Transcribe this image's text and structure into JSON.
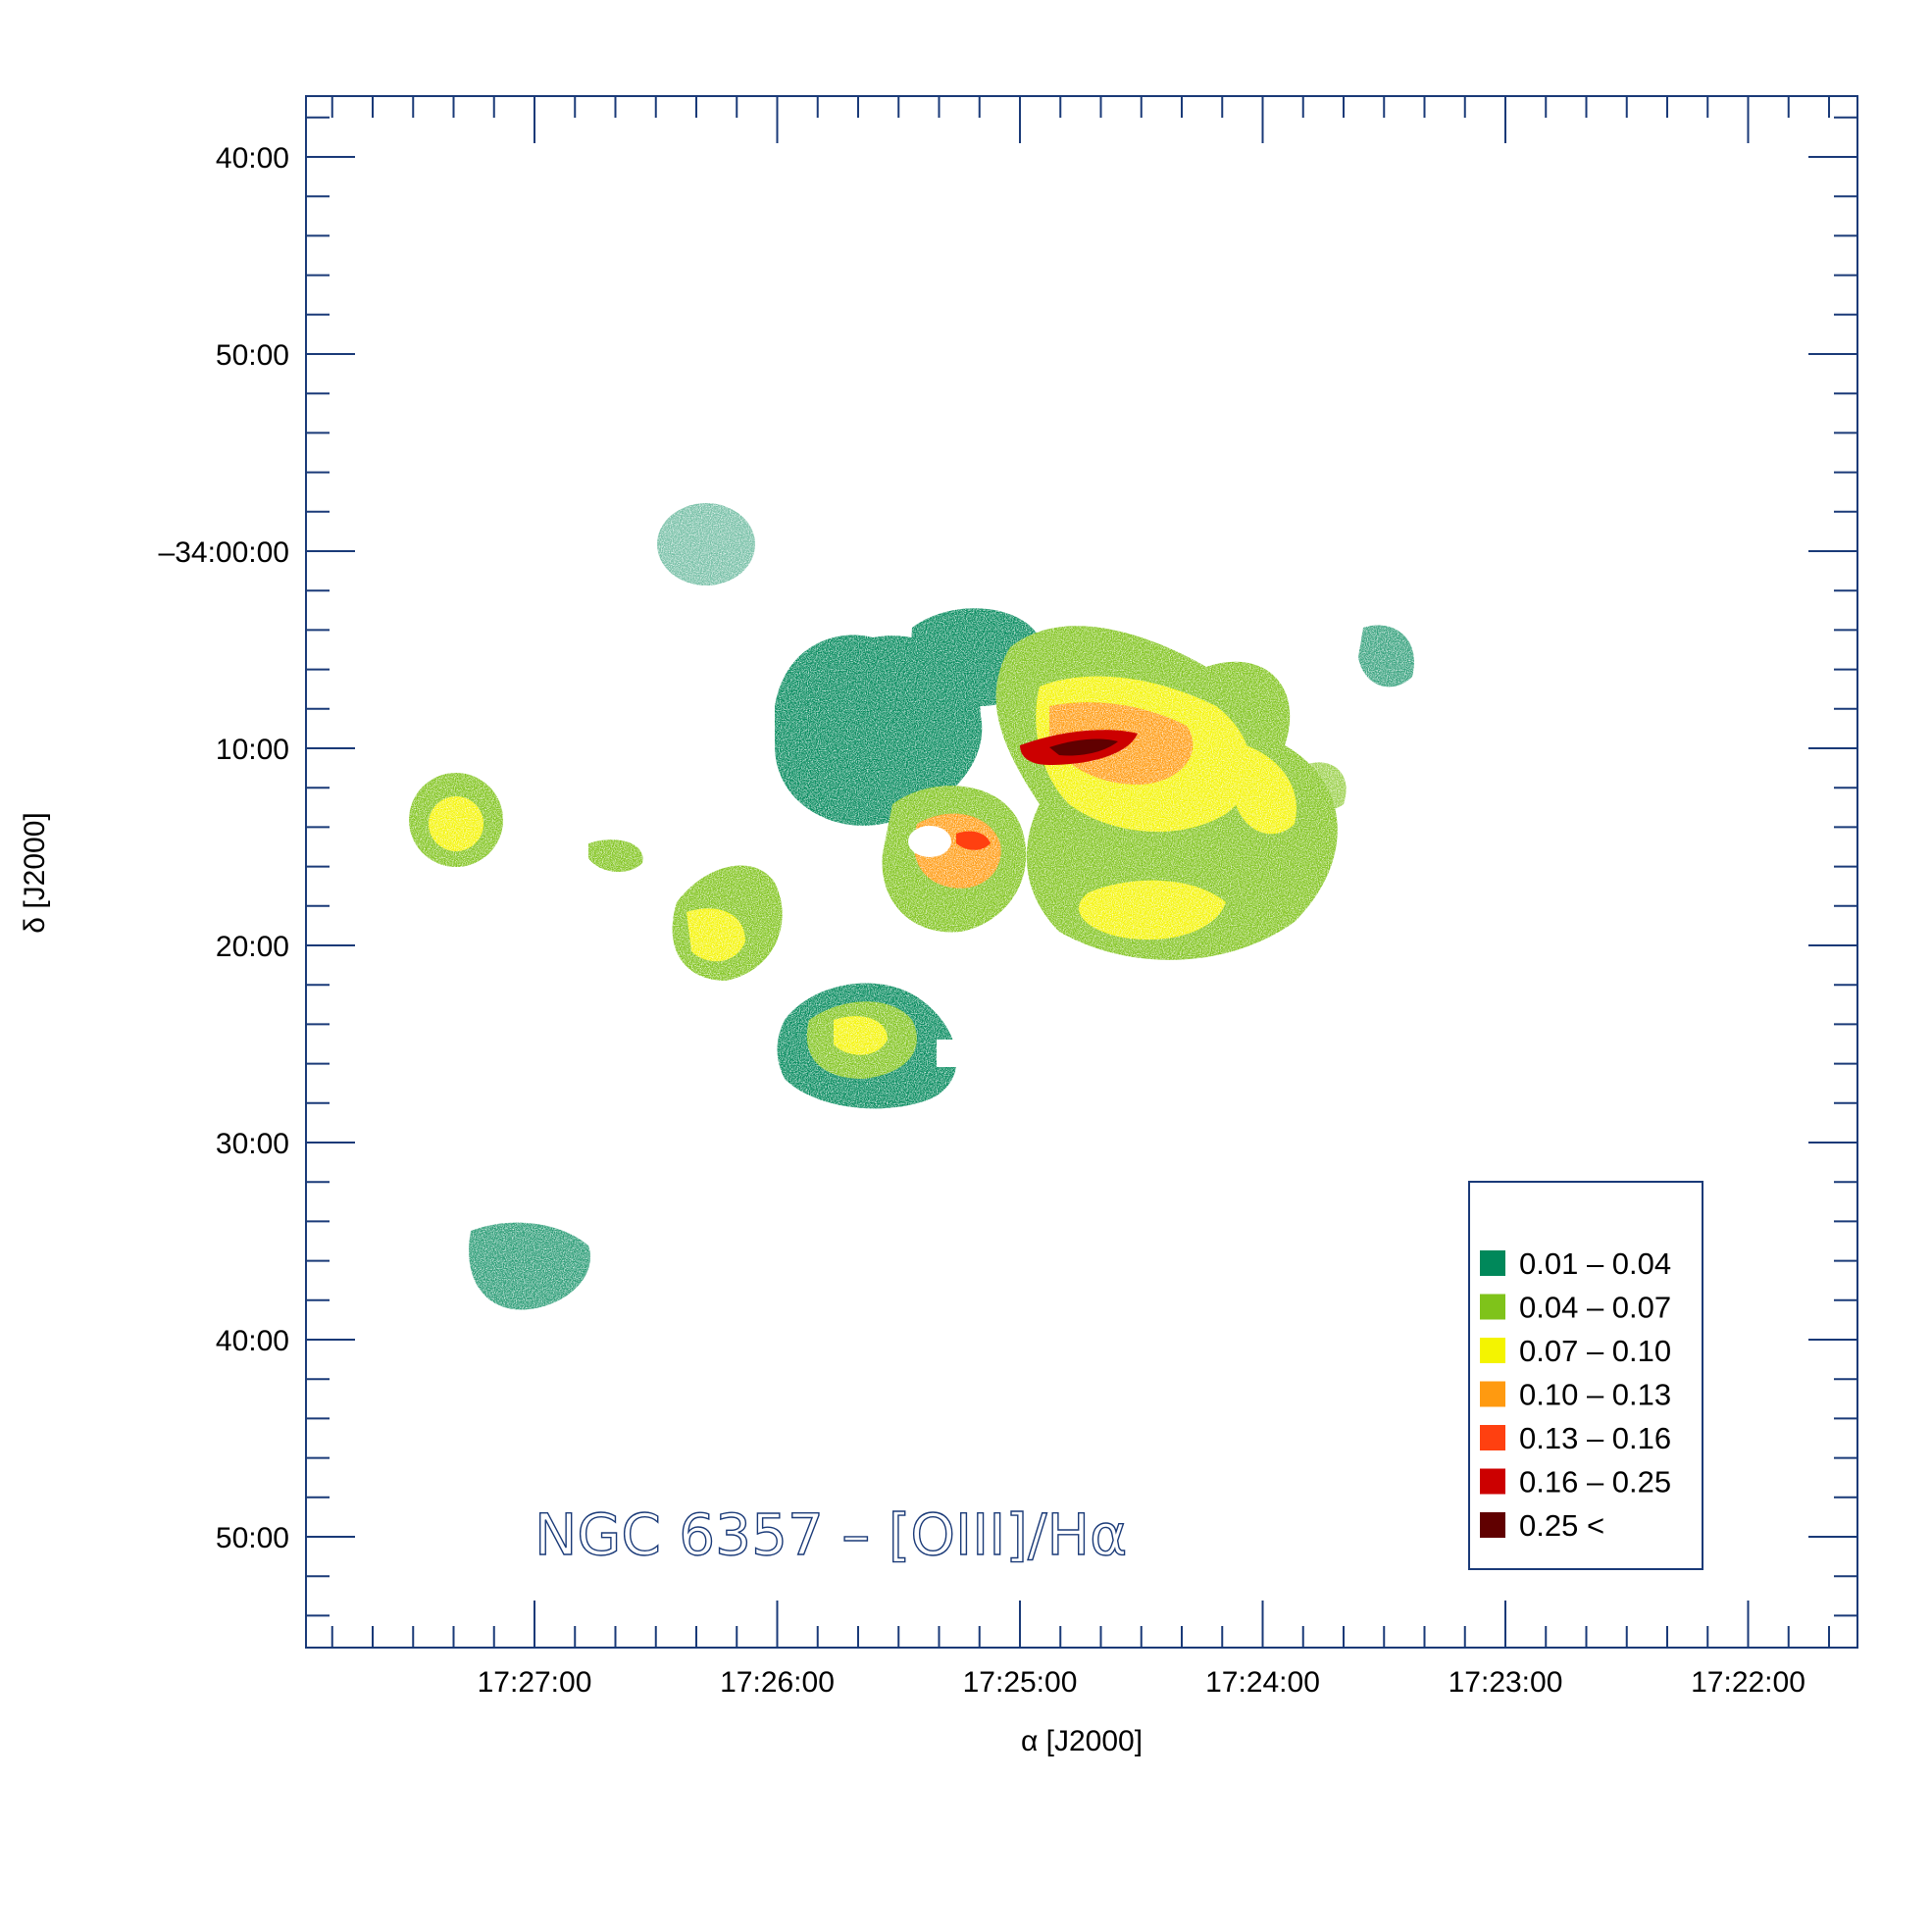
{
  "chart_data": {
    "type": "heatmap",
    "title": "NGC 6357 – [OIII]/Hα",
    "xlabel": "α [J2000]",
    "ylabel": "δ [J2000]",
    "x_ticks": [
      "17:27:00",
      "17:26:00",
      "17:25:00",
      "17:24:00",
      "17:23:00",
      "17:22:00"
    ],
    "y_ticks": [
      "40:00",
      "50:00",
      "–34:00:00",
      "10:00",
      "20:00",
      "30:00",
      "40:00",
      "50:00"
    ],
    "legend_position": "bottom-right",
    "color_scale": [
      {
        "range": "0.01 – 0.04",
        "color": "#00885a"
      },
      {
        "range": "0.04 – 0.07",
        "color": "#7fc31a"
      },
      {
        "range": "0.07 – 0.10",
        "color": "#f4f400"
      },
      {
        "range": "0.10 – 0.13",
        "color": "#ff9a10"
      },
      {
        "range": "0.13 – 0.16",
        "color": "#ff4010"
      },
      {
        "range": "0.16 – 0.25",
        "color": "#cc0000"
      },
      {
        "range": "0.25 <",
        "color": "#600000"
      }
    ]
  }
}
